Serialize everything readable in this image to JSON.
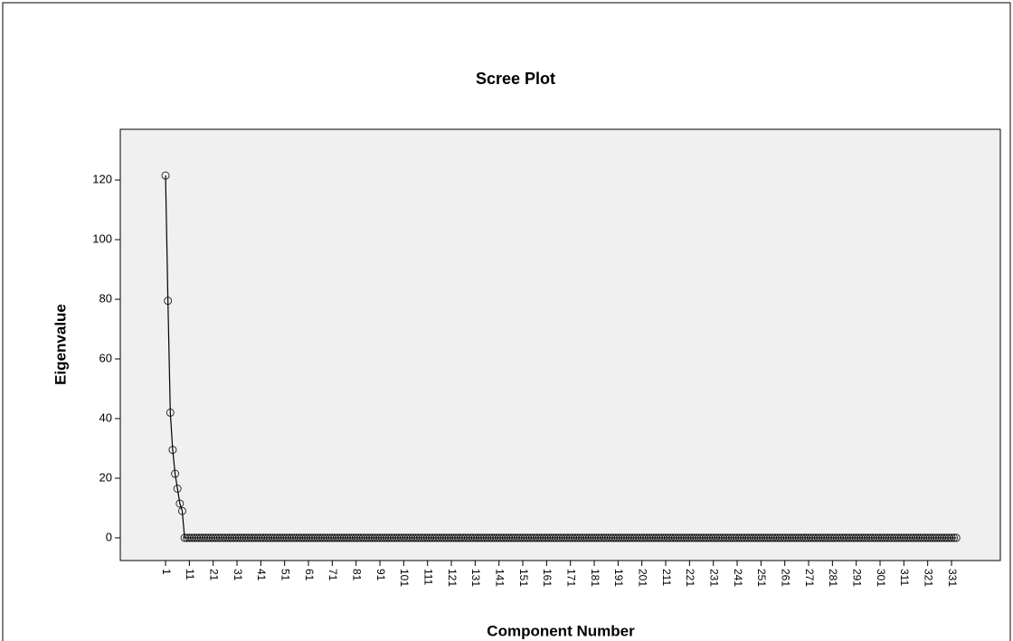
{
  "chart_data": {
    "type": "line",
    "title": "Scree Plot",
    "x_label": "Component Number",
    "y_label": "Eigenvalue",
    "x": [
      1,
      2,
      3,
      4,
      5,
      6,
      7,
      8,
      9,
      10,
      11,
      12,
      13,
      14,
      15,
      16,
      17,
      18,
      19,
      20,
      21,
      22,
      23,
      24,
      25,
      26,
      27,
      28,
      29,
      30,
      31,
      32,
      33,
      34,
      35,
      36,
      37,
      38,
      39,
      40,
      41,
      42,
      43,
      44,
      45,
      46,
      47,
      48,
      49,
      50,
      51,
      52,
      53,
      54,
      55,
      56,
      57,
      58,
      59,
      60,
      61,
      62,
      63,
      64,
      65,
      66,
      67,
      68,
      69,
      70,
      71,
      72,
      73,
      74,
      75,
      76,
      77,
      78,
      79,
      80,
      81,
      82,
      83,
      84,
      85,
      86,
      87,
      88,
      89,
      90,
      91,
      92,
      93,
      94,
      95,
      96,
      97,
      98,
      99,
      100,
      101,
      102,
      103,
      104,
      105,
      106,
      107,
      108,
      109,
      110,
      111,
      112,
      113,
      114,
      115,
      116,
      117,
      118,
      119,
      120,
      121,
      122,
      123,
      124,
      125,
      126,
      127,
      128,
      129,
      130,
      131,
      132,
      133,
      134,
      135,
      136,
      137,
      138,
      139,
      140,
      141,
      142,
      143,
      144,
      145,
      146,
      147,
      148,
      149,
      150,
      151,
      152,
      153,
      154,
      155,
      156,
      157,
      158,
      159,
      160,
      161,
      162,
      163,
      164,
      165,
      166,
      167,
      168,
      169,
      170,
      171,
      172,
      173,
      174,
      175,
      176,
      177,
      178,
      179,
      180,
      181,
      182,
      183,
      184,
      185,
      186,
      187,
      188,
      189,
      190,
      191,
      192,
      193,
      194,
      195,
      196,
      197,
      198,
      199,
      200,
      201,
      202,
      203,
      204,
      205,
      206,
      207,
      208,
      209,
      210,
      211,
      212,
      213,
      214,
      215,
      216,
      217,
      218,
      219,
      220,
      221,
      222,
      223,
      224,
      225,
      226,
      227,
      228,
      229,
      230,
      231,
      232,
      233,
      234,
      235,
      236,
      237,
      238,
      239,
      240,
      241,
      242,
      243,
      244,
      245,
      246,
      247,
      248,
      249,
      250,
      251,
      252,
      253,
      254,
      255,
      256,
      257,
      258,
      259,
      260,
      261,
      262,
      263,
      264,
      265,
      266,
      267,
      268,
      269,
      270,
      271,
      272,
      273,
      274,
      275,
      276,
      277,
      278,
      279,
      280,
      281,
      282,
      283,
      284,
      285,
      286,
      287,
      288,
      289,
      290,
      291,
      292,
      293,
      294,
      295,
      296,
      297,
      298,
      299,
      300,
      301,
      302,
      303,
      304,
      305,
      306,
      307,
      308,
      309,
      310,
      311,
      312,
      313,
      314,
      315,
      316,
      317,
      318,
      319,
      320,
      321,
      322,
      323,
      324,
      325,
      326,
      327,
      328,
      329,
      330,
      331,
      332,
      333
    ],
    "values": [
      121.5,
      79.5,
      42,
      29.5,
      21.5,
      16.5,
      11.5,
      9,
      0,
      0,
      0,
      0,
      0,
      0,
      0,
      0,
      0,
      0,
      0,
      0,
      0,
      0,
      0,
      0,
      0,
      0,
      0,
      0,
      0,
      0,
      0,
      0,
      0,
      0,
      0,
      0,
      0,
      0,
      0,
      0,
      0,
      0,
      0,
      0,
      0,
      0,
      0,
      0,
      0,
      0,
      0,
      0,
      0,
      0,
      0,
      0,
      0,
      0,
      0,
      0,
      0,
      0,
      0,
      0,
      0,
      0,
      0,
      0,
      0,
      0,
      0,
      0,
      0,
      0,
      0,
      0,
      0,
      0,
      0,
      0,
      0,
      0,
      0,
      0,
      0,
      0,
      0,
      0,
      0,
      0,
      0,
      0,
      0,
      0,
      0,
      0,
      0,
      0,
      0,
      0,
      0,
      0,
      0,
      0,
      0,
      0,
      0,
      0,
      0,
      0,
      0,
      0,
      0,
      0,
      0,
      0,
      0,
      0,
      0,
      0,
      0,
      0,
      0,
      0,
      0,
      0,
      0,
      0,
      0,
      0,
      0,
      0,
      0,
      0,
      0,
      0,
      0,
      0,
      0,
      0,
      0,
      0,
      0,
      0,
      0,
      0,
      0,
      0,
      0,
      0,
      0,
      0,
      0,
      0,
      0,
      0,
      0,
      0,
      0,
      0,
      0,
      0,
      0,
      0,
      0,
      0,
      0,
      0,
      0,
      0,
      0,
      0,
      0,
      0,
      0,
      0,
      0,
      0,
      0,
      0,
      0,
      0,
      0,
      0,
      0,
      0,
      0,
      0,
      0,
      0,
      0,
      0,
      0,
      0,
      0,
      0,
      0,
      0,
      0,
      0,
      0,
      0,
      0,
      0,
      0,
      0,
      0,
      0,
      0,
      0,
      0,
      0,
      0,
      0,
      0,
      0,
      0,
      0,
      0,
      0,
      0,
      0,
      0,
      0,
      0,
      0,
      0,
      0,
      0,
      0,
      0,
      0,
      0,
      0,
      0,
      0,
      0,
      0,
      0,
      0,
      0,
      0,
      0,
      0,
      0,
      0,
      0,
      0,
      0,
      0,
      0,
      0,
      0,
      0,
      0,
      0,
      0,
      0,
      0,
      0,
      0,
      0,
      0,
      0,
      0,
      0,
      0,
      0,
      0,
      0,
      0,
      0,
      0,
      0,
      0,
      0,
      0,
      0,
      0,
      0,
      0,
      0,
      0,
      0,
      0,
      0,
      0,
      0,
      0,
      0,
      0,
      0,
      0,
      0,
      0,
      0,
      0,
      0,
      0,
      0,
      0,
      0,
      0,
      0,
      0,
      0,
      0,
      0,
      0,
      0,
      0,
      0,
      0,
      0,
      0,
      0,
      0,
      0,
      0,
      0,
      0,
      0,
      0,
      0,
      0,
      0,
      0,
      0,
      0,
      0,
      0,
      0,
      0
    ],
    "color": "#000000",
    "xlim": [
      -18,
      351.5
    ],
    "xticks": [
      1,
      11,
      21,
      31,
      41,
      51,
      61,
      71,
      81,
      91,
      101,
      111,
      121,
      131,
      141,
      151,
      161,
      171,
      181,
      191,
      201,
      211,
      221,
      231,
      241,
      251,
      261,
      271,
      281,
      291,
      301,
      311,
      321,
      331
    ],
    "ylim": [
      -7.6,
      137
    ],
    "yticks": [
      0,
      20,
      40,
      60,
      80,
      100,
      120
    ]
  }
}
